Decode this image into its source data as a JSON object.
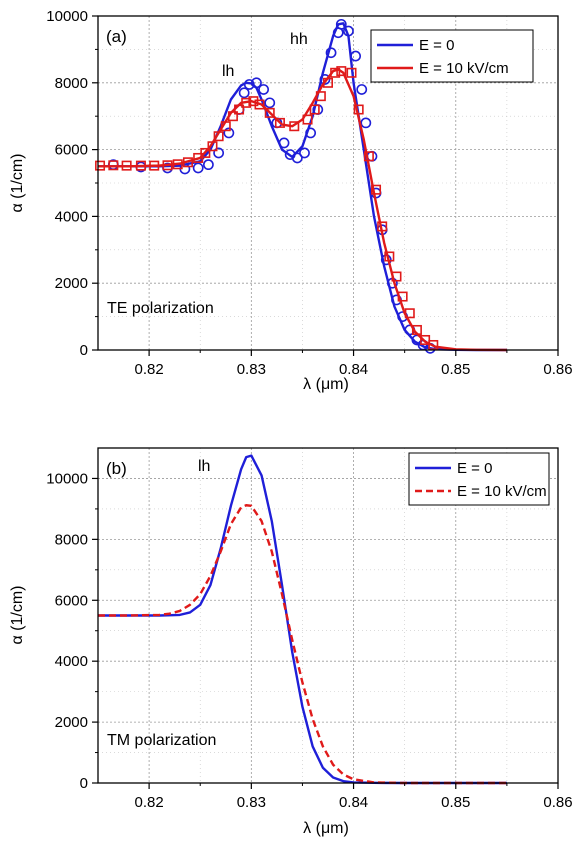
{
  "chart_data": [
    {
      "type": "line",
      "panel_label": "(a)",
      "xlabel": "λ (μm)",
      "ylabel": "α (1/cm)",
      "xlim": [
        0.815,
        0.86
      ],
      "ylim": [
        0,
        10000
      ],
      "xticks": [
        "0.82",
        "0.83",
        "0.84",
        "0.85",
        "0.86"
      ],
      "yticks": [
        "0",
        "2000",
        "4000",
        "6000",
        "8000",
        "10000"
      ],
      "grid": true,
      "legend": "top-right",
      "annotations": [
        "lh",
        "hh"
      ],
      "polarization_label": "TE polarization",
      "series": [
        {
          "name": "E = 0",
          "color": "#1f1fd8",
          "style": "solid",
          "marker": "circle",
          "x": [
            0.815,
            0.818,
            0.821,
            0.823,
            0.825,
            0.826,
            0.827,
            0.828,
            0.829,
            0.8295,
            0.83,
            0.8305,
            0.831,
            0.832,
            0.833,
            0.834,
            0.835,
            0.836,
            0.837,
            0.838,
            0.8385,
            0.839,
            0.8395,
            0.84,
            0.841,
            0.842,
            0.843,
            0.844,
            0.845,
            0.846,
            0.847,
            0.848,
            0.85,
            0.852,
            0.855
          ],
          "y": [
            5500,
            5500,
            5500,
            5520,
            5650,
            6000,
            6700,
            7500,
            7920,
            8000,
            7980,
            7850,
            7500,
            6700,
            6000,
            5780,
            6100,
            7000,
            8300,
            9400,
            9750,
            9780,
            9400,
            8000,
            6000,
            4000,
            2500,
            1300,
            600,
            250,
            80,
            25,
            5,
            0,
            0
          ],
          "markers_x": [
            0.8165,
            0.8192,
            0.8218,
            0.8235,
            0.8248,
            0.8258,
            0.8268,
            0.8278,
            0.8288,
            0.8293,
            0.8298,
            0.8305,
            0.8312,
            0.8318,
            0.8325,
            0.8332,
            0.8338,
            0.8345,
            0.8352,
            0.8358,
            0.8365,
            0.8372,
            0.8378,
            0.8385,
            0.8388,
            0.8395,
            0.8402,
            0.8408,
            0.8412,
            0.8418,
            0.8422,
            0.8428,
            0.8432,
            0.8438,
            0.8442,
            0.8448,
            0.8455,
            0.8462,
            0.8468,
            0.8475
          ],
          "markers_y": [
            5550,
            5480,
            5450,
            5420,
            5450,
            5550,
            5900,
            6500,
            7200,
            7700,
            7950,
            8000,
            7800,
            7400,
            6800,
            6200,
            5850,
            5750,
            5900,
            6500,
            7200,
            8100,
            8900,
            9500,
            9750,
            9550,
            8800,
            7800,
            6800,
            5800,
            4700,
            3600,
            2700,
            2000,
            1500,
            1000,
            600,
            300,
            150,
            50
          ]
        },
        {
          "name": "E = 10 kV/cm",
          "color": "#e01a1a",
          "style": "solid",
          "marker": "square",
          "x": [
            0.815,
            0.818,
            0.821,
            0.823,
            0.825,
            0.826,
            0.827,
            0.828,
            0.829,
            0.83,
            0.831,
            0.832,
            0.833,
            0.834,
            0.835,
            0.836,
            0.837,
            0.838,
            0.8385,
            0.839,
            0.84,
            0.841,
            0.842,
            0.843,
            0.844,
            0.845,
            0.846,
            0.847,
            0.848,
            0.85,
            0.852,
            0.855
          ],
          "y": [
            5500,
            5500,
            5520,
            5580,
            5750,
            6100,
            6600,
            7100,
            7400,
            7450,
            7350,
            7050,
            6750,
            6700,
            6900,
            7400,
            7950,
            8350,
            8400,
            8300,
            7600,
            6300,
            4700,
            3200,
            2000,
            1100,
            550,
            250,
            100,
            20,
            5,
            0
          ],
          "markers_x": [
            0.8152,
            0.8165,
            0.8178,
            0.8192,
            0.8205,
            0.8218,
            0.8228,
            0.8238,
            0.8248,
            0.8255,
            0.8262,
            0.8268,
            0.8275,
            0.8282,
            0.8288,
            0.8295,
            0.8302,
            0.8308,
            0.8318,
            0.8328,
            0.8342,
            0.8355,
            0.8362,
            0.8368,
            0.8375,
            0.8382,
            0.8388,
            0.8398,
            0.8405,
            0.8415,
            0.8422,
            0.8428,
            0.8435,
            0.8442,
            0.8448,
            0.8455,
            0.8462,
            0.847,
            0.8478
          ],
          "markers_y": [
            5520,
            5530,
            5520,
            5520,
            5520,
            5530,
            5560,
            5620,
            5750,
            5900,
            6100,
            6400,
            6700,
            7000,
            7200,
            7400,
            7450,
            7350,
            7100,
            6800,
            6700,
            6900,
            7200,
            7600,
            8000,
            8300,
            8350,
            8300,
            7200,
            5800,
            4800,
            3700,
            2800,
            2200,
            1600,
            1100,
            600,
            300,
            150
          ]
        }
      ]
    },
    {
      "type": "line",
      "panel_label": "(b)",
      "xlabel": "λ (μm)",
      "ylabel": "α (1/cm)",
      "xlim": [
        0.815,
        0.86
      ],
      "ylim": [
        0,
        11000
      ],
      "xticks": [
        "0.82",
        "0.83",
        "0.84",
        "0.85",
        "0.86"
      ],
      "yticks": [
        "0",
        "2000",
        "4000",
        "6000",
        "8000",
        "10000"
      ],
      "grid": true,
      "legend": "top-right",
      "annotations": [
        "lh"
      ],
      "polarization_label": "TM polarization",
      "series": [
        {
          "name": "E = 0",
          "color": "#1f1fd8",
          "style": "solid",
          "x": [
            0.815,
            0.818,
            0.821,
            0.823,
            0.824,
            0.825,
            0.826,
            0.827,
            0.828,
            0.829,
            0.8295,
            0.83,
            0.831,
            0.832,
            0.833,
            0.834,
            0.835,
            0.836,
            0.837,
            0.838,
            0.839,
            0.84,
            0.842,
            0.845,
            0.85,
            0.855
          ],
          "y": [
            5500,
            5500,
            5500,
            5520,
            5600,
            5850,
            6500,
            7700,
            9100,
            10300,
            10700,
            10750,
            10100,
            8600,
            6500,
            4300,
            2500,
            1200,
            500,
            180,
            60,
            20,
            5,
            0,
            0,
            0
          ]
        },
        {
          "name": "E = 10 kV/cm",
          "color": "#e01a1a",
          "style": "dashed",
          "x": [
            0.815,
            0.818,
            0.821,
            0.822,
            0.823,
            0.824,
            0.825,
            0.826,
            0.827,
            0.828,
            0.829,
            0.8295,
            0.83,
            0.831,
            0.832,
            0.833,
            0.834,
            0.835,
            0.836,
            0.837,
            0.838,
            0.839,
            0.84,
            0.842,
            0.845,
            0.85,
            0.855
          ],
          "y": [
            5500,
            5500,
            5520,
            5560,
            5650,
            5850,
            6200,
            6800,
            7600,
            8500,
            9050,
            9120,
            9100,
            8600,
            7600,
            6200,
            4700,
            3300,
            2100,
            1200,
            600,
            280,
            120,
            20,
            0,
            0,
            0
          ]
        }
      ]
    }
  ]
}
